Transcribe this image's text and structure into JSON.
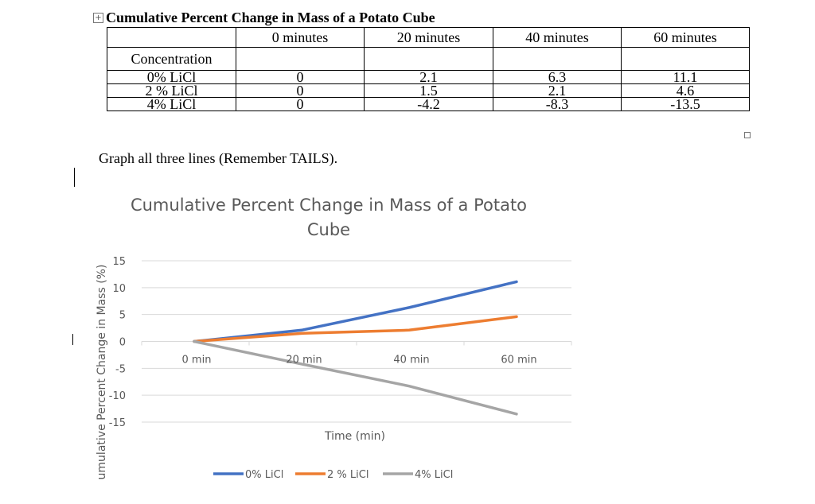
{
  "table": {
    "title": "Cumulative Percent Change in Mass of a Potato Cube",
    "move_handle_glyph": "+",
    "headers": [
      "",
      "0 minutes",
      "20 minutes",
      "40 minutes",
      "60 minutes"
    ],
    "row_label_header": "Concentration",
    "rows": [
      {
        "label": "0% LiCl",
        "values": [
          "0",
          "2.1",
          "6.3",
          "11.1"
        ]
      },
      {
        "label": "2 % LiCl",
        "values": [
          "0",
          "1.5",
          "2.1",
          "4.6"
        ]
      },
      {
        "label": "4% LiCl",
        "values": [
          "0",
          "-4.2",
          "-8.3",
          "-13.5"
        ]
      }
    ]
  },
  "instruction": "Graph all three lines (Remember TAILS).",
  "chart_data": {
    "type": "line",
    "title": "Cumulative Percent Change in Mass of a Potato Cube",
    "xlabel": "Time (min)",
    "ylabel": "umulative Percent Change in Mass (%)",
    "categories": [
      "0 min",
      "20 min",
      "40 min",
      "60 min"
    ],
    "ylim": [
      -15,
      15
    ],
    "yticks": [
      15,
      10,
      5,
      0,
      -5,
      -10,
      -15
    ],
    "grid": true,
    "legend_position": "bottom",
    "series": [
      {
        "name": "0% LiCl",
        "values": [
          0,
          2.1,
          6.3,
          11.1
        ],
        "color": "#4472C4"
      },
      {
        "name": "2 % LiCl",
        "values": [
          0,
          1.5,
          2.1,
          4.6
        ],
        "color": "#ED7D31"
      },
      {
        "name": "4% LiCl",
        "values": [
          0,
          -4.2,
          -8.3,
          -13.5
        ],
        "color": "#A5A5A5"
      }
    ]
  }
}
